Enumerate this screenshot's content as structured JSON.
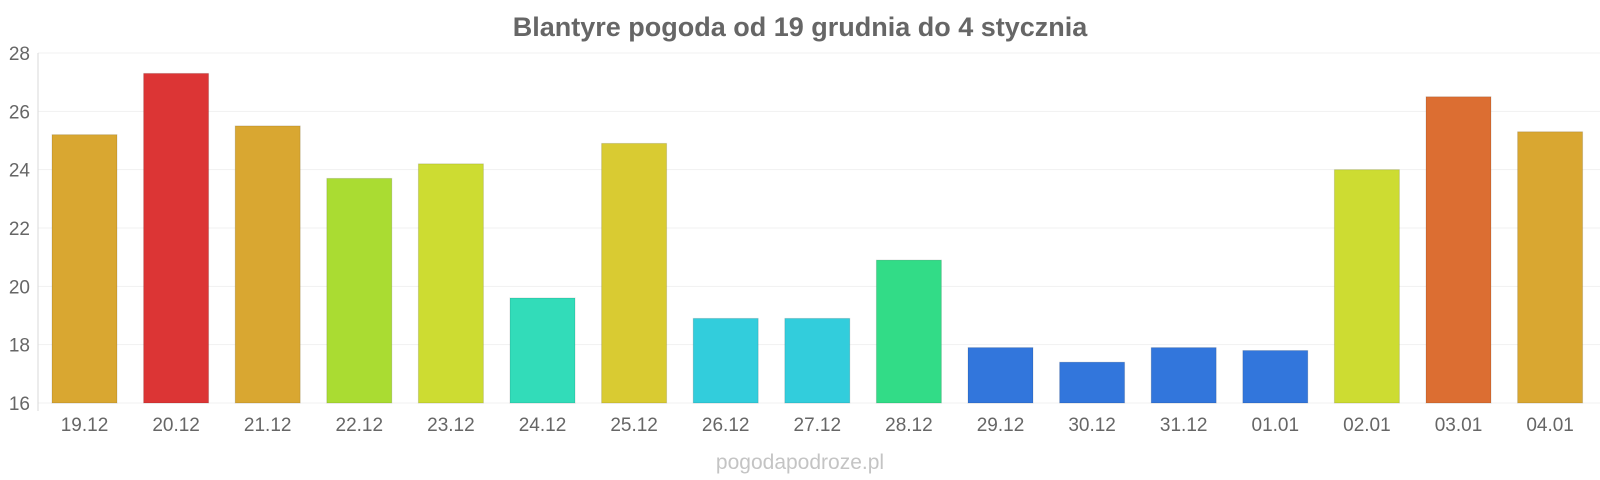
{
  "chart_data": {
    "type": "bar",
    "title": "Blantyre pogoda od 19 grudnia do 4 stycznia",
    "xlabel": "",
    "ylabel": "",
    "ylim": [
      16,
      28
    ],
    "yticks": [
      16,
      18,
      20,
      22,
      24,
      26,
      28
    ],
    "grid": true,
    "categories": [
      "19.12",
      "20.12",
      "21.12",
      "22.12",
      "23.12",
      "24.12",
      "25.12",
      "26.12",
      "27.12",
      "28.12",
      "29.12",
      "30.12",
      "31.12",
      "01.01",
      "02.01",
      "03.01",
      "04.01"
    ],
    "values": [
      25.2,
      27.3,
      25.5,
      23.7,
      24.2,
      19.6,
      24.9,
      18.9,
      18.9,
      20.9,
      17.9,
      17.4,
      17.9,
      17.8,
      24.0,
      26.5,
      25.3
    ],
    "colors": [
      "#d9a731",
      "#dc3535",
      "#d9a731",
      "#aadc32",
      "#cddc32",
      "#32dcb9",
      "#d9cb32",
      "#32cddc",
      "#32cddc",
      "#32dc87",
      "#3276dc",
      "#3276dc",
      "#3276dc",
      "#3276dc",
      "#cddc32",
      "#dc6e32",
      "#d9a731"
    ]
  },
  "watermark": "pogodapodroze.pl"
}
